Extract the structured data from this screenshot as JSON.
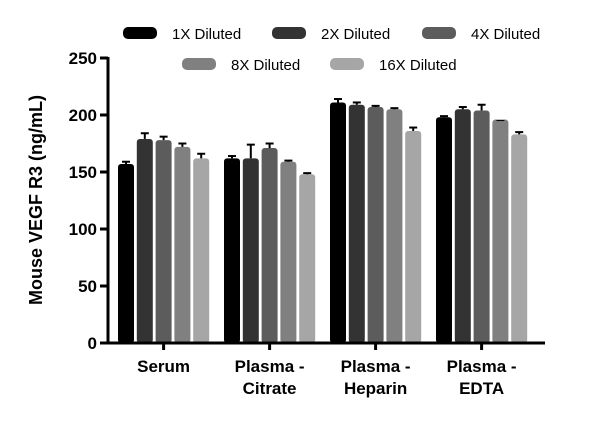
{
  "chart_data": {
    "type": "bar",
    "title": "",
    "xlabel": "",
    "ylabel": "Mouse VEGF R3 (ng/mL)",
    "ylim": [
      0,
      250
    ],
    "yticks": [
      0,
      50,
      100,
      150,
      200,
      250
    ],
    "grid": false,
    "legend_placement": "top",
    "categories": [
      [
        "Serum"
      ],
      [
        "Plasma -",
        "Citrate"
      ],
      [
        "Plasma -",
        "Heparin"
      ],
      [
        "Plasma -",
        "EDTA"
      ]
    ],
    "series": [
      {
        "name": "1X Diluted",
        "color": "#000000",
        "values": [
          157,
          162,
          211,
          198
        ],
        "errors": [
          2,
          2,
          3,
          1
        ]
      },
      {
        "name": "2X Diluted",
        "color": "#333333",
        "values": [
          179,
          162,
          209,
          205
        ],
        "errors": [
          5,
          12,
          2,
          2
        ]
      },
      {
        "name": "4X Diluted",
        "color": "#5c5c5c",
        "values": [
          178,
          171,
          207,
          204
        ],
        "errors": [
          3,
          4,
          1,
          5
        ]
      },
      {
        "name": "8X Diluted",
        "color": "#808080",
        "values": [
          172,
          159,
          205,
          196
        ],
        "errors": [
          3,
          1,
          1,
          0
        ]
      },
      {
        "name": "16X Diluted",
        "color": "#a6a6a6",
        "values": [
          162,
          148,
          186,
          183
        ],
        "errors": [
          4,
          1,
          3,
          2
        ]
      }
    ]
  }
}
